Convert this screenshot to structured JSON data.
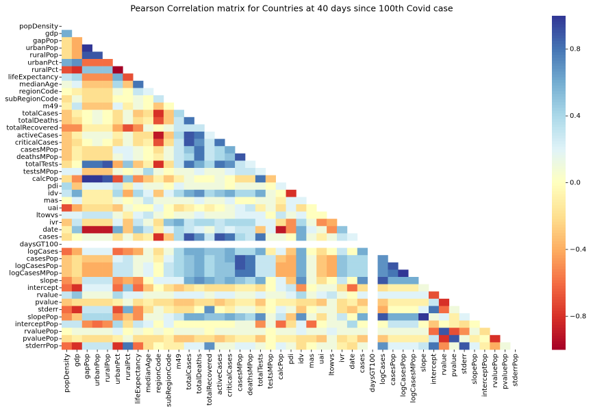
{
  "chart_data": {
    "type": "heatmap",
    "title": "Pearson Correlation matrix for Countries at 40 days since 100th Covid case",
    "variables": [
      "popDensity",
      "gdp",
      "gapPop",
      "urbanPop",
      "ruralPop",
      "urbanPct",
      "ruralPct",
      "lifeExpectancy",
      "medianAge",
      "regionCode",
      "subRegionCode",
      "m49",
      "totalCases",
      "totalDeaths",
      "totalRecovered",
      "activeCases",
      "criticalCases",
      "casesMPop",
      "deathsMPop",
      "totalTests",
      "testsMPop",
      "calcPop",
      "pdi",
      "idv",
      "mas",
      "uai",
      "ltowvs",
      "ivr",
      "date",
      "cases",
      "daysGT100",
      "logCases",
      "casesPop",
      "logCasesPop",
      "logCasesMPop",
      "slope",
      "intercept",
      "rvalue",
      "pvalue",
      "stderr",
      "slopePop",
      "interceptPop",
      "rvaluePop",
      "pvaluePop",
      "stderrPop"
    ],
    "matrix": [
      [],
      [
        0.6
      ],
      [
        -0.2,
        -0.4
      ],
      [
        -0.2,
        -0.4,
        1.0
      ],
      [
        -0.2,
        -0.4,
        0.9,
        0.9
      ],
      [
        0.6,
        0.7,
        -0.6,
        -0.6,
        -0.6
      ],
      [
        -0.7,
        -0.8,
        0.5,
        0.5,
        0.5,
        -1.0
      ],
      [
        0.3,
        0.4,
        -0.5,
        -0.5,
        -0.5,
        0.6,
        -0.7
      ],
      [
        0.1,
        0.2,
        -0.3,
        -0.3,
        -0.3,
        0.4,
        -0.3,
        0.8
      ],
      [
        0.0,
        -0.1,
        -0.2,
        -0.2,
        -0.2,
        0.1,
        0.0,
        0.3,
        0.2
      ],
      [
        -0.2,
        0.1,
        -0.2,
        -0.2,
        -0.2,
        0.0,
        0.0,
        0.1,
        0.0,
        0.3
      ],
      [
        -0.1,
        0.3,
        -0.3,
        -0.3,
        -0.3,
        0.2,
        -0.1,
        0.1,
        0.0,
        -0.3,
        0.0
      ],
      [
        -0.3,
        -0.1,
        0.0,
        0.1,
        0.0,
        -0.2,
        0.1,
        -0.3,
        -0.2,
        -0.8,
        -0.3,
        0.4
      ],
      [
        -0.3,
        -0.2,
        0.0,
        0.1,
        0.0,
        -0.2,
        0.1,
        -0.2,
        -0.1,
        -0.7,
        -0.3,
        0.3,
        0.8
      ],
      [
        -0.5,
        -0.5,
        -0.1,
        -0.1,
        -0.1,
        -0.4,
        -0.7,
        -0.5,
        0.1,
        0.0,
        0.1,
        0.3,
        0.3,
        0.3
      ],
      [
        -0.3,
        -0.1,
        0.1,
        0.1,
        0.1,
        -0.1,
        0.1,
        -0.2,
        -0.2,
        -0.9,
        -0.3,
        0.4,
        0.9,
        0.8,
        0.2
      ],
      [
        -0.3,
        -0.2,
        0.0,
        0.1,
        0.0,
        -0.2,
        0.1,
        -0.2,
        -0.1,
        -0.7,
        -0.2,
        0.3,
        0.9,
        0.7,
        0.3,
        0.8
      ],
      [
        -0.3,
        -0.1,
        -0.2,
        -0.2,
        -0.2,
        0.2,
        0.2,
        0.1,
        0.0,
        -0.2,
        0.1,
        0.3,
        0.5,
        0.8,
        0.3,
        0.4,
        0.6
      ],
      [
        -0.3,
        -0.1,
        -0.2,
        -0.2,
        -0.2,
        0.1,
        0.2,
        0.1,
        0.0,
        -0.1,
        0.1,
        0.3,
        0.4,
        0.8,
        0.3,
        0.4,
        0.5,
        0.9
      ],
      [
        -0.2,
        0.0,
        0.8,
        0.8,
        0.9,
        -0.4,
        0.5,
        -0.3,
        -0.1,
        -0.8,
        -0.2,
        0.3,
        0.8,
        0.6,
        0.4,
        0.8,
        0.7,
        0.3,
        0.2
      ],
      [
        0.2,
        0.2,
        -0.3,
        -0.3,
        -0.3,
        0.1,
        0.0,
        0.1,
        0.4,
        0.1,
        0.0,
        0.1,
        0.1,
        0.2,
        0.1,
        0.1,
        0.2,
        0.3,
        0.3,
        0.2
      ],
      [
        -0.2,
        -0.5,
        1.0,
        1.0,
        0.9,
        -0.7,
        0.5,
        -0.5,
        -0.3,
        -0.1,
        -0.3,
        -0.1,
        0.1,
        0.0,
        0.0,
        0.1,
        0.0,
        -0.2,
        -0.2,
        0.8,
        -0.3
      ],
      [
        0.4,
        -0.3,
        0.2,
        0.2,
        0.2,
        0.3,
        -0.1,
        0.2,
        0.1,
        0.1,
        0.0,
        0.2,
        0.1,
        0.1,
        0.1,
        0.1,
        0.0,
        0.1,
        0.1,
        0.1,
        0.0,
        0.2
      ],
      [
        0.3,
        0.6,
        -0.1,
        -0.1,
        -0.1,
        0.4,
        -0.4,
        0.4,
        0.2,
        -0.3,
        0.2,
        0.4,
        0.6,
        0.7,
        0.4,
        0.5,
        0.6,
        0.4,
        0.4,
        0.6,
        0.1,
        0.0,
        -0.8
      ],
      [
        0.0,
        0.2,
        -0.1,
        -0.1,
        -0.1,
        0.1,
        0.0,
        0.1,
        0.3,
        0.1,
        0.1,
        0.1,
        0.1,
        0.2,
        0.1,
        0.1,
        0.2,
        0.0,
        0.0,
        0.1,
        0.1,
        -0.1,
        0.2,
        0.2
      ],
      [
        -0.7,
        -0.4,
        -0.2,
        -0.2,
        -0.2,
        -0.3,
        0.1,
        0.0,
        0.0,
        0.2,
        0.0,
        -0.2,
        -0.1,
        0.0,
        -0.1,
        0.0,
        0.1,
        0.2,
        0.3,
        -0.1,
        0.1,
        -0.2,
        0.2,
        -0.2,
        0.0
      ],
      [
        0.2,
        0.2,
        0.3,
        0.3,
        0.3,
        0.1,
        -0.1,
        0.2,
        0.3,
        0.1,
        0.0,
        0.1,
        0.1,
        0.2,
        0.1,
        0.1,
        0.1,
        0.2,
        0.2,
        0.2,
        0.0,
        0.3,
        0.1,
        0.2,
        0.0,
        0.0
      ],
      [
        -0.3,
        0.3,
        -0.2,
        -0.2,
        -0.2,
        0.2,
        -0.3,
        0.3,
        0.1,
        -0.2,
        0.5,
        0.6,
        0.3,
        0.4,
        0.4,
        0.3,
        0.4,
        0.4,
        0.4,
        0.2,
        0.2,
        -0.2,
        -0.5,
        0.4,
        0.1,
        -0.5,
        -0.4
      ],
      [
        -0.1,
        0.5,
        -0.9,
        -0.9,
        -0.9,
        0.6,
        -0.3,
        0.5,
        0.3,
        -0.1,
        0.2,
        0.4,
        0.3,
        0.2,
        0.1,
        0.3,
        0.2,
        0.3,
        0.3,
        -0.3,
        0.2,
        -0.9,
        -0.5,
        0.6,
        0.2,
        0.1,
        -0.5,
        0.5
      ],
      [
        -0.2,
        0.0,
        0.1,
        0.1,
        0.1,
        -0.2,
        0.1,
        -0.2,
        -0.1,
        -0.8,
        -0.3,
        0.4,
        0.9,
        0.7,
        0.3,
        0.9,
        0.8,
        0.4,
        0.3,
        0.8,
        0.1,
        0.1,
        0.0,
        0.6,
        0.1,
        -0.1,
        0.1,
        0.3,
        0.2
      ],
      [
        null,
        null,
        null,
        null,
        null,
        null,
        null,
        null,
        null,
        null,
        null,
        null,
        null,
        null,
        null,
        null,
        null,
        null,
        null,
        null,
        null,
        null,
        null,
        null,
        null,
        null,
        null,
        null,
        null,
        null
      ],
      [
        -0.6,
        -0.4,
        0.2,
        0.2,
        0.2,
        -0.6,
        -0.5,
        -0.4,
        0.1,
        -0.2,
        0.1,
        0.4,
        0.6,
        0.6,
        0.5,
        0.5,
        0.6,
        0.4,
        0.4,
        0.6,
        -0.1,
        0.2,
        -0.3,
        0.6,
        0.0,
        -0.2,
        0.0,
        0.3,
        0.0,
        0.6,
        null
      ],
      [
        -0.3,
        -0.2,
        -0.3,
        -0.3,
        -0.3,
        0.2,
        0.3,
        0.1,
        0.1,
        -0.1,
        0.2,
        0.4,
        0.5,
        0.6,
        0.4,
        0.5,
        0.6,
        0.9,
        0.8,
        0.3,
        0.3,
        -0.3,
        -0.4,
        0.6,
        0.1,
        -0.3,
        -0.4,
        0.5,
        0.4,
        0.4,
        null,
        0.7
      ],
      [
        -0.3,
        -0.2,
        -0.4,
        -0.4,
        -0.4,
        0.3,
        0.3,
        0.1,
        0.2,
        0.0,
        0.3,
        0.4,
        0.5,
        0.6,
        0.4,
        0.5,
        0.5,
        0.9,
        0.8,
        0.3,
        0.3,
        -0.4,
        -0.4,
        0.6,
        0.1,
        -0.3,
        -0.4,
        0.5,
        0.4,
        0.4,
        null,
        0.7,
        0.9
      ],
      [
        -0.3,
        -0.2,
        -0.4,
        -0.4,
        -0.4,
        0.3,
        0.3,
        0.1,
        0.2,
        0.0,
        0.3,
        0.4,
        0.5,
        0.6,
        0.4,
        0.5,
        0.5,
        0.8,
        0.8,
        0.3,
        0.3,
        -0.4,
        -0.4,
        0.6,
        0.1,
        -0.3,
        -0.4,
        0.5,
        0.4,
        0.4,
        null,
        0.7,
        0.8,
        1.0
      ],
      [
        -0.5,
        -0.3,
        0.3,
        0.3,
        0.3,
        -0.5,
        -0.4,
        -0.5,
        0.0,
        0.2,
        0.2,
        0.2,
        0.6,
        0.7,
        0.6,
        0.5,
        0.6,
        0.5,
        0.4,
        0.6,
        0.0,
        0.2,
        -0.3,
        0.7,
        0.1,
        -0.2,
        0.0,
        0.3,
        0.0,
        0.7,
        null,
        0.9,
        0.6,
        0.6,
        0.6
      ],
      [
        -0.6,
        -0.8,
        0.2,
        0.2,
        0.2,
        -0.6,
        0.5,
        -0.6,
        -0.3,
        0.0,
        -0.2,
        -0.3,
        -0.2,
        -0.1,
        -0.2,
        -0.2,
        -0.2,
        -0.1,
        -0.1,
        -0.2,
        0.0,
        0.2,
        0.3,
        -0.5,
        0.0,
        0.1,
        0.1,
        -0.2,
        -0.6,
        -0.2,
        null,
        -0.2,
        -0.1,
        -0.1,
        -0.1,
        0.1
      ],
      [
        0.3,
        0.5,
        0.1,
        0.1,
        0.1,
        0.4,
        0.2,
        0.2,
        0.1,
        0.1,
        0.1,
        0.2,
        0.2,
        0.2,
        0.1,
        0.2,
        0.2,
        0.1,
        0.1,
        0.2,
        0.1,
        0.1,
        0.2,
        0.4,
        0.1,
        0.2,
        0.3,
        0.1,
        0.0,
        0.2,
        null,
        0.2,
        0.2,
        0.2,
        0.2,
        0.2,
        -0.7
      ],
      [
        -0.3,
        -0.2,
        -0.2,
        -0.2,
        -0.2,
        -0.1,
        0.1,
        -0.2,
        -0.1,
        -0.2,
        -0.2,
        -0.3,
        -0.3,
        -0.2,
        -0.2,
        -0.3,
        -0.2,
        -0.1,
        -0.1,
        -0.3,
        0.0,
        -0.1,
        -0.1,
        -0.2,
        -0.2,
        -0.3,
        0.1,
        -0.2,
        -0.1,
        -0.3,
        null,
        -0.3,
        -0.1,
        -0.1,
        -0.1,
        -0.1,
        0.3,
        -0.8
      ],
      [
        -0.6,
        -0.8,
        0.3,
        0.3,
        0.3,
        -0.7,
        0.6,
        -0.5,
        -0.2,
        0.1,
        -0.1,
        -0.2,
        -0.2,
        0.0,
        0.7,
        0.0,
        -0.1,
        0.1,
        0.1,
        -0.1,
        0.0,
        0.2,
        0.1,
        -0.3,
        0.0,
        0.1,
        0.1,
        -0.2,
        -0.3,
        -0.1,
        null,
        -0.4,
        0.0,
        0.0,
        0.0,
        0.2,
        0.8,
        -0.6,
        0.1
      ],
      [
        -0.5,
        -0.3,
        0.4,
        0.4,
        0.4,
        -0.5,
        -0.3,
        -0.5,
        0.1,
        0.1,
        0.2,
        0.3,
        0.6,
        0.6,
        0.5,
        0.5,
        0.6,
        0.5,
        0.4,
        0.7,
        0.1,
        0.3,
        -0.3,
        0.7,
        0.1,
        -0.2,
        0.1,
        0.3,
        0.0,
        0.6,
        null,
        0.9,
        0.6,
        0.6,
        0.6,
        1.0,
        0.1,
        0.2,
        -0.1,
        0.2
      ],
      [
        0.3,
        0.3,
        -0.5,
        -0.6,
        -0.5,
        0.4,
        -0.2,
        0.3,
        0.2,
        0.0,
        0.2,
        0.0,
        0.0,
        0.0,
        0.0,
        0.0,
        0.0,
        0.1,
        0.1,
        -0.5,
        0.1,
        -0.6,
        -0.2,
        0.2,
        -0.6,
        0.0,
        0.1,
        0.1,
        0.4,
        0.0,
        null,
        0.0,
        0.3,
        0.3,
        0.3,
        0.0,
        -0.3,
        0.0,
        -0.1,
        -0.2,
        0.0
      ],
      [
        0.0,
        0.1,
        0.1,
        0.1,
        0.1,
        0.2,
        0.0,
        0.1,
        0.0,
        0.1,
        0.0,
        0.1,
        0.1,
        0.1,
        0.0,
        0.1,
        0.1,
        0.1,
        0.1,
        0.1,
        0.0,
        0.1,
        0.1,
        0.2,
        0.1,
        0.1,
        0.2,
        0.1,
        0.1,
        0.1,
        null,
        0.1,
        0.1,
        0.1,
        0.1,
        0.1,
        -0.6,
        0.9,
        -0.7,
        -0.5,
        0.1,
        -0.2
      ],
      [
        -0.2,
        -0.1,
        -0.2,
        -0.2,
        -0.2,
        -0.1,
        0.1,
        -0.2,
        -0.2,
        -0.2,
        -0.1,
        -0.3,
        -0.3,
        -0.2,
        -0.2,
        -0.3,
        -0.2,
        -0.1,
        -0.1,
        -0.3,
        0.0,
        -0.1,
        -0.1,
        -0.2,
        -0.2,
        -0.3,
        0.1,
        -0.2,
        -0.1,
        -0.3,
        null,
        -0.3,
        -0.1,
        -0.1,
        -0.1,
        -0.1,
        0.3,
        -0.8,
        0.9,
        0.1,
        -0.1,
        0.0,
        -0.8
      ],
      [
        -0.6,
        -0.8,
        0.3,
        0.3,
        0.3,
        -0.8,
        0.8,
        -0.6,
        -0.2,
        0.0,
        -0.1,
        -0.1,
        0.2,
        0.2,
        0.7,
        0.1,
        0.1,
        0.2,
        0.2,
        0.1,
        0.0,
        0.2,
        0.1,
        -0.2,
        0.0,
        0.1,
        0.1,
        -0.1,
        -0.2,
        0.1,
        null,
        0.7,
        0.2,
        0.2,
        0.2,
        0.3,
        0.8,
        -0.5,
        0.1,
        0.9,
        0.2,
        -0.1,
        -0.4,
        0.1
      ]
    ],
    "clim": [
      -1,
      1
    ],
    "colorbar_ticks": [
      {
        "value": -0.8,
        "label": "−0.8"
      },
      {
        "value": -0.4,
        "label": "−0.4"
      },
      {
        "value": 0,
        "label": "0.0"
      },
      0.4,
      0.8
    ],
    "colormap": [
      "#a50026",
      "#d73027",
      "#f46d43",
      "#fdae61",
      "#fee090",
      "#ffffbf",
      "#e0f3f8",
      "#abd9e9",
      "#74add1",
      "#4575b4",
      "#313695"
    ]
  }
}
